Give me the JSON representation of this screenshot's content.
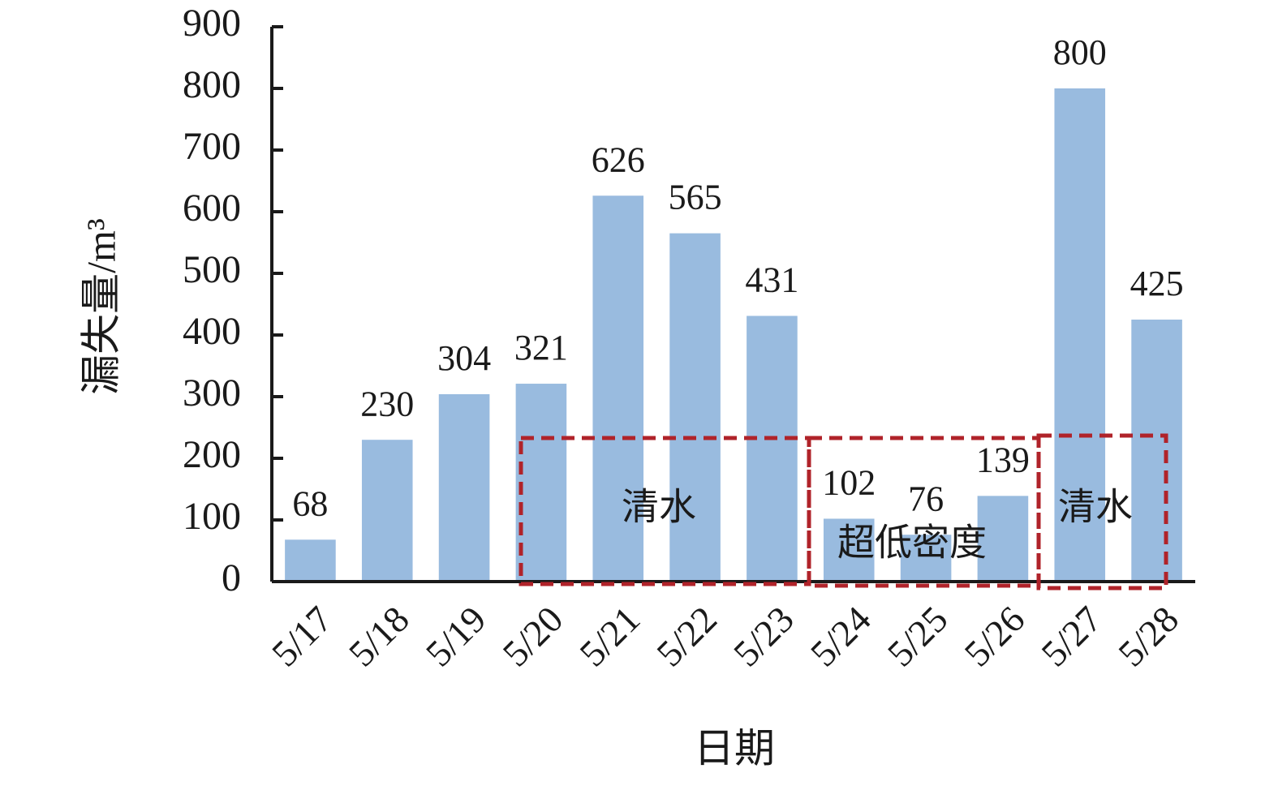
{
  "chart_data": {
    "type": "bar",
    "x_label": "日期",
    "y_label": "漏失量/m³",
    "categories": [
      "5/17",
      "5/18",
      "5/19",
      "5/20",
      "5/21",
      "5/22",
      "5/23",
      "5/24",
      "5/25",
      "5/26",
      "5/27",
      "5/28"
    ],
    "values": [
      68,
      230,
      304,
      321,
      626,
      565,
      431,
      102,
      76,
      139,
      800,
      425
    ],
    "color": "#99bbdf",
    "ylim": [
      0,
      900
    ],
    "yticks": [
      0,
      100,
      200,
      300,
      400,
      500,
      600,
      700,
      800,
      900
    ],
    "grid": false,
    "annotations": [
      "清水",
      "超低密度",
      "清水"
    ]
  }
}
